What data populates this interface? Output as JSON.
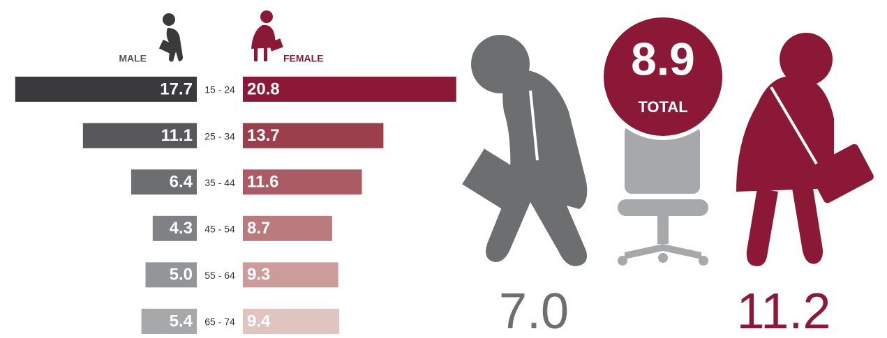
{
  "chart_data": {
    "type": "butterfly-bar",
    "categories": [
      "15 - 24",
      "25 - 34",
      "35 - 44",
      "45 - 54",
      "55 - 64",
      "65 - 74"
    ],
    "series": [
      {
        "name": "MALE",
        "color": "#58585a",
        "colors": [
          "#3a3a3c",
          "#58585a",
          "#6d6e70",
          "#808184",
          "#949598",
          "#a7a8aa"
        ],
        "values": [
          17.7,
          11.1,
          6.4,
          4.3,
          5,
          5.4
        ],
        "value_labels": [
          "17.7",
          "11.1",
          "6.4",
          "4.3",
          "5.0",
          "5.4"
        ]
      },
      {
        "name": "FEMALE",
        "color": "#8c1838",
        "colors": [
          "#8c1838",
          "#9c3f4d",
          "#ab5b63",
          "#b97b7e",
          "#cc9c9b",
          "#dfc4c0"
        ],
        "values": [
          20.8,
          13.7,
          11.6,
          8.7,
          9.3,
          9.4
        ],
        "value_labels": [
          "20.8",
          "13.7",
          "11.6",
          "8.7",
          "9.3",
          "9.4"
        ]
      }
    ]
  },
  "summary": {
    "total": "8.9",
    "total_label": "TOTAL",
    "male": "7.0",
    "female": "11.2"
  }
}
